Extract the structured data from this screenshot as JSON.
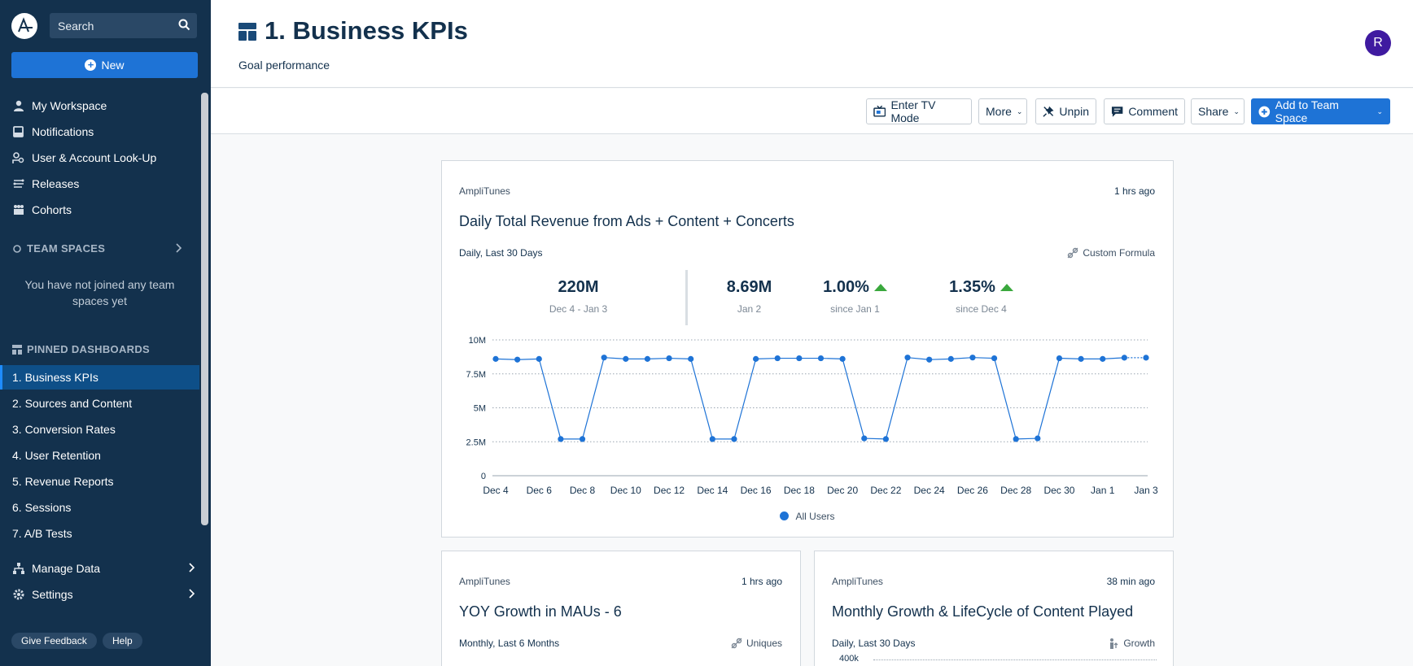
{
  "sidebar": {
    "search_placeholder": "Search",
    "new_label": "New",
    "nav": [
      {
        "label": "My Workspace",
        "icon": "person-icon"
      },
      {
        "label": "Notifications",
        "icon": "inbox-icon"
      },
      {
        "label": "User & Account Look-Up",
        "icon": "user-lookup-icon"
      },
      {
        "label": "Releases",
        "icon": "releases-icon"
      },
      {
        "label": "Cohorts",
        "icon": "cohorts-icon"
      }
    ],
    "team_spaces_heading": "TEAM SPACES",
    "team_spaces_empty": "You have not joined any team spaces yet",
    "pinned_heading": "PINNED DASHBOARDS",
    "pinned": [
      "1. Business KPIs",
      "2. Sources and Content",
      "3. Conversion Rates",
      "4. User Retention",
      "5. Revenue Reports",
      "6. Sessions",
      "7. A/B Tests"
    ],
    "manage_data": "Manage Data",
    "settings": "Settings",
    "give_feedback": "Give Feedback",
    "help": "Help"
  },
  "header": {
    "title": "1. Business KPIs",
    "subtitle": "Goal performance",
    "avatar_initial": "R"
  },
  "toolbar": {
    "tv_mode": "Enter TV Mode",
    "more": "More",
    "unpin": "Unpin",
    "comment": "Comment",
    "share": "Share",
    "add_team_space": "Add to Team Space"
  },
  "main_card": {
    "source": "AmpliTunes",
    "updated": "1 hrs ago",
    "title": "Daily Total Revenue from Ads + Content + Concerts",
    "range": "Daily, Last 30 Days",
    "type": "Custom Formula",
    "kpis": [
      {
        "value": "220M",
        "label": "Dec 4 - Jan 3"
      },
      {
        "value": "8.69M",
        "label": "Jan 2"
      },
      {
        "value": "1.00%",
        "label": "since Jan 1"
      },
      {
        "value": "1.35%",
        "label": "since Dec 4"
      }
    ],
    "legend": "All Users"
  },
  "chart_data": {
    "type": "line",
    "x": [
      "Dec 4",
      "Dec 5",
      "Dec 6",
      "Dec 7",
      "Dec 8",
      "Dec 9",
      "Dec 10",
      "Dec 11",
      "Dec 12",
      "Dec 13",
      "Dec 14",
      "Dec 15",
      "Dec 16",
      "Dec 17",
      "Dec 18",
      "Dec 19",
      "Dec 20",
      "Dec 21",
      "Dec 22",
      "Dec 23",
      "Dec 24",
      "Dec 25",
      "Dec 26",
      "Dec 27",
      "Dec 28",
      "Dec 29",
      "Dec 30",
      "Dec 31",
      "Jan 1",
      "Jan 2",
      "Jan 3"
    ],
    "tick_labels": [
      "Dec 4",
      "Dec 6",
      "Dec 8",
      "Dec 10",
      "Dec 12",
      "Dec 14",
      "Dec 16",
      "Dec 18",
      "Dec 20",
      "Dec 22",
      "Dec 24",
      "Dec 26",
      "Dec 28",
      "Dec 30",
      "Jan 1",
      "Jan 3"
    ],
    "series": [
      {
        "name": "All Users",
        "values": [
          8.6,
          8.55,
          8.6,
          2.7,
          2.7,
          8.7,
          8.6,
          8.6,
          8.65,
          8.6,
          2.7,
          2.7,
          8.6,
          8.65,
          8.65,
          8.65,
          8.6,
          2.75,
          2.7,
          8.7,
          8.55,
          8.6,
          8.7,
          8.65,
          2.7,
          2.75,
          8.65,
          8.6,
          8.6,
          8.69,
          8.69
        ]
      }
    ],
    "y_ticks": [
      "0",
      "2.5M",
      "5M",
      "7.5M",
      "10M"
    ],
    "ylim": [
      0,
      10
    ],
    "grid": true,
    "legend": "bottom"
  },
  "card2": {
    "source": "AmpliTunes",
    "updated": "1 hrs ago",
    "title": "YOY Growth in MAUs - 6",
    "range": "Monthly, Last 6 Months",
    "type": "Uniques"
  },
  "card3": {
    "source": "AmpliTunes",
    "updated": "38 min ago",
    "title": "Monthly Growth & LifeCycle of Content Played",
    "range": "Daily, Last 30 Days",
    "type": "Growth",
    "top_tick": "400k"
  },
  "colors": {
    "sidebar": "#13314d",
    "accent": "#1e73d6",
    "positive": "#3aa83d",
    "avatar": "#3f1aa0"
  }
}
